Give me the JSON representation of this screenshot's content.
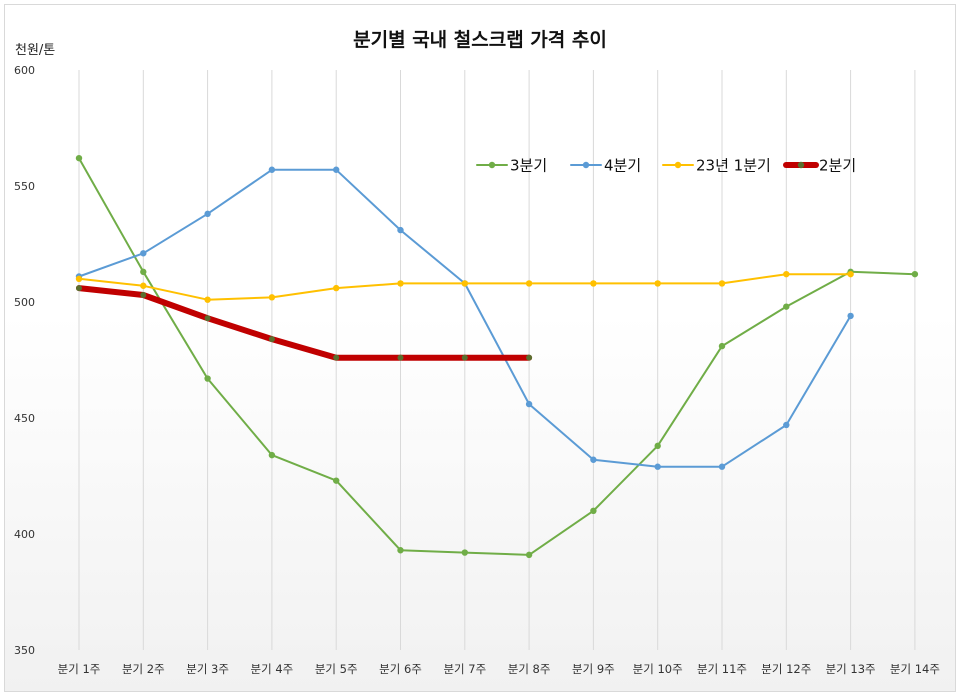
{
  "chart_data": {
    "type": "line",
    "title": "분기별 국내 철스크랩 가격 추이",
    "ylabel": "천원/톤",
    "ylim": [
      350,
      600
    ],
    "yticks": [
      "600",
      "550",
      "500",
      "450",
      "400",
      "350"
    ],
    "grid": "vertical",
    "legend_position": "top-right",
    "categories": [
      "분기 1주",
      "분기 2주",
      "분기 3주",
      "분기 4주",
      "분기 5주",
      "분기 6주",
      "분기 7주",
      "분기 8주",
      "분기 9주",
      "분기 10주",
      "분기 11주",
      "분기 12주",
      "분기 13주",
      "분기 14주"
    ],
    "series": [
      {
        "name": "3분기",
        "color": "#70ad47",
        "values": [
          562,
          513,
          467,
          434,
          423,
          393,
          392,
          391,
          410,
          438,
          481,
          498,
          513,
          512
        ]
      },
      {
        "name": "4분기",
        "color": "#5b9bd5",
        "values": [
          511,
          521,
          538,
          557,
          557,
          531,
          508,
          456,
          432,
          429,
          429,
          447,
          494,
          null
        ]
      },
      {
        "name": "23년 1분기",
        "color": "#ffc000",
        "values": [
          510,
          507,
          501,
          502,
          506,
          508,
          508,
          508,
          508,
          508,
          508,
          512,
          512,
          null
        ]
      },
      {
        "name": "2분기",
        "color": "#c00000",
        "values": [
          506,
          503,
          493,
          484,
          476,
          476,
          476,
          476,
          null,
          null,
          null,
          null,
          null,
          null
        ]
      }
    ]
  }
}
